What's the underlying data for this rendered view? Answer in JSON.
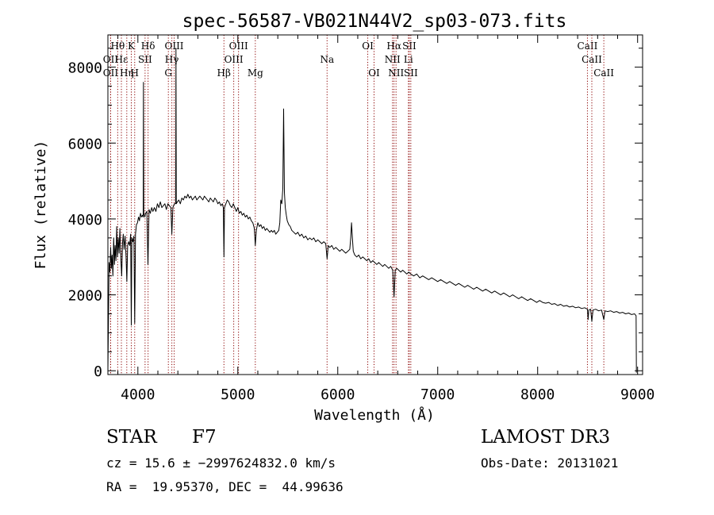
{
  "chart_data": {
    "type": "line",
    "title": "spec-56587-VB021N44V2_sp03-073.fits",
    "xlabel": "Wavelength (Å)",
    "ylabel": "Flux (relative)",
    "xlim": [
      3700,
      9050
    ],
    "ylim": [
      -100,
      8850
    ],
    "x_ticks": [
      4000,
      5000,
      6000,
      7000,
      8000,
      9000
    ],
    "y_ticks": [
      0,
      2000,
      4000,
      6000,
      8000
    ],
    "grid": false,
    "line_color": "#000000",
    "marker_color": "#8b0000",
    "spectrum_points": [
      [
        3700,
        0
      ],
      [
        3705,
        1150
      ],
      [
        3712,
        2850
      ],
      [
        3720,
        2600
      ],
      [
        3728,
        3250
      ],
      [
        3735,
        2700
      ],
      [
        3742,
        3050
      ],
      [
        3750,
        2500
      ],
      [
        3758,
        3500
      ],
      [
        3766,
        2800
      ],
      [
        3772,
        3300
      ],
      [
        3780,
        2900
      ],
      [
        3788,
        3800
      ],
      [
        3796,
        3000
      ],
      [
        3804,
        3500
      ],
      [
        3812,
        3100
      ],
      [
        3820,
        3750
      ],
      [
        3830,
        2900
      ],
      [
        3838,
        2500
      ],
      [
        3846,
        3350
      ],
      [
        3854,
        3600
      ],
      [
        3862,
        3200
      ],
      [
        3872,
        3550
      ],
      [
        3882,
        3000
      ],
      [
        3890,
        2350
      ],
      [
        3898,
        3300
      ],
      [
        3908,
        3400
      ],
      [
        3918,
        3300
      ],
      [
        3928,
        3600
      ],
      [
        3934,
        1200
      ],
      [
        3940,
        3500
      ],
      [
        3950,
        3400
      ],
      [
        3960,
        3550
      ],
      [
        3968,
        1250
      ],
      [
        3976,
        3600
      ],
      [
        3986,
        3850
      ],
      [
        3996,
        3900
      ],
      [
        4006,
        4050
      ],
      [
        4016,
        3950
      ],
      [
        4026,
        4150
      ],
      [
        4036,
        4050
      ],
      [
        4046,
        4100
      ],
      [
        4053,
        4050
      ],
      [
        4056,
        7600
      ],
      [
        4059,
        4150
      ],
      [
        4068,
        4050
      ],
      [
        4078,
        4150
      ],
      [
        4090,
        4200
      ],
      [
        4101,
        2800
      ],
      [
        4112,
        4250
      ],
      [
        4125,
        4150
      ],
      [
        4138,
        4300
      ],
      [
        4150,
        4200
      ],
      [
        4165,
        4300
      ],
      [
        4180,
        4200
      ],
      [
        4195,
        4400
      ],
      [
        4210,
        4300
      ],
      [
        4225,
        4450
      ],
      [
        4240,
        4300
      ],
      [
        4255,
        4350
      ],
      [
        4270,
        4400
      ],
      [
        4285,
        4250
      ],
      [
        4300,
        4400
      ],
      [
        4315,
        4350
      ],
      [
        4330,
        4300
      ],
      [
        4340,
        3600
      ],
      [
        4350,
        4300
      ],
      [
        4365,
        4400
      ],
      [
        4378,
        4400
      ],
      [
        4381,
        8500
      ],
      [
        4384,
        4400
      ],
      [
        4395,
        4450
      ],
      [
        4410,
        4500
      ],
      [
        4425,
        4400
      ],
      [
        4440,
        4550
      ],
      [
        4455,
        4500
      ],
      [
        4470,
        4600
      ],
      [
        4485,
        4550
      ],
      [
        4500,
        4650
      ],
      [
        4515,
        4550
      ],
      [
        4530,
        4600
      ],
      [
        4545,
        4500
      ],
      [
        4560,
        4550
      ],
      [
        4575,
        4600
      ],
      [
        4590,
        4500
      ],
      [
        4605,
        4550
      ],
      [
        4620,
        4600
      ],
      [
        4635,
        4550
      ],
      [
        4650,
        4500
      ],
      [
        4665,
        4600
      ],
      [
        4680,
        4550
      ],
      [
        4695,
        4500
      ],
      [
        4710,
        4450
      ],
      [
        4725,
        4550
      ],
      [
        4740,
        4500
      ],
      [
        4755,
        4450
      ],
      [
        4770,
        4550
      ],
      [
        4785,
        4500
      ],
      [
        4800,
        4400
      ],
      [
        4815,
        4450
      ],
      [
        4830,
        4350
      ],
      [
        4845,
        4400
      ],
      [
        4855,
        4300
      ],
      [
        4861,
        3000
      ],
      [
        4867,
        4300
      ],
      [
        4880,
        4400
      ],
      [
        4895,
        4500
      ],
      [
        4910,
        4450
      ],
      [
        4925,
        4350
      ],
      [
        4940,
        4300
      ],
      [
        4955,
        4400
      ],
      [
        4970,
        4300
      ],
      [
        4985,
        4200
      ],
      [
        5000,
        4300
      ],
      [
        5015,
        4150
      ],
      [
        5030,
        4200
      ],
      [
        5045,
        4100
      ],
      [
        5060,
        4150
      ],
      [
        5075,
        4050
      ],
      [
        5090,
        4100
      ],
      [
        5105,
        4000
      ],
      [
        5120,
        4050
      ],
      [
        5135,
        3950
      ],
      [
        5150,
        3900
      ],
      [
        5165,
        3750
      ],
      [
        5175,
        3300
      ],
      [
        5185,
        3700
      ],
      [
        5200,
        3900
      ],
      [
        5215,
        3800
      ],
      [
        5230,
        3850
      ],
      [
        5245,
        3750
      ],
      [
        5260,
        3800
      ],
      [
        5275,
        3700
      ],
      [
        5290,
        3750
      ],
      [
        5305,
        3700
      ],
      [
        5320,
        3650
      ],
      [
        5335,
        3700
      ],
      [
        5350,
        3650
      ],
      [
        5365,
        3700
      ],
      [
        5380,
        3600
      ],
      [
        5395,
        3650
      ],
      [
        5410,
        3700
      ],
      [
        5420,
        3900
      ],
      [
        5430,
        4500
      ],
      [
        5440,
        4400
      ],
      [
        5450,
        4800
      ],
      [
        5458,
        6900
      ],
      [
        5466,
        4700
      ],
      [
        5475,
        4300
      ],
      [
        5485,
        4100
      ],
      [
        5495,
        3950
      ],
      [
        5510,
        3850
      ],
      [
        5525,
        3800
      ],
      [
        5540,
        3700
      ],
      [
        5560,
        3650
      ],
      [
        5580,
        3600
      ],
      [
        5600,
        3650
      ],
      [
        5620,
        3550
      ],
      [
        5640,
        3600
      ],
      [
        5660,
        3500
      ],
      [
        5680,
        3550
      ],
      [
        5700,
        3450
      ],
      [
        5720,
        3500
      ],
      [
        5740,
        3450
      ],
      [
        5760,
        3500
      ],
      [
        5780,
        3400
      ],
      [
        5800,
        3450
      ],
      [
        5820,
        3400
      ],
      [
        5840,
        3350
      ],
      [
        5860,
        3400
      ],
      [
        5880,
        3350
      ],
      [
        5893,
        2950
      ],
      [
        5905,
        3300
      ],
      [
        5920,
        3250
      ],
      [
        5940,
        3300
      ],
      [
        5960,
        3200
      ],
      [
        5980,
        3250
      ],
      [
        6000,
        3200
      ],
      [
        6020,
        3150
      ],
      [
        6040,
        3200
      ],
      [
        6060,
        3150
      ],
      [
        6080,
        3100
      ],
      [
        6100,
        3150
      ],
      [
        6120,
        3200
      ],
      [
        6130,
        3500
      ],
      [
        6138,
        3900
      ],
      [
        6146,
        3500
      ],
      [
        6155,
        3150
      ],
      [
        6170,
        3050
      ],
      [
        6190,
        3000
      ],
      [
        6210,
        3050
      ],
      [
        6230,
        2950
      ],
      [
        6250,
        3000
      ],
      [
        6270,
        2950
      ],
      [
        6290,
        2900
      ],
      [
        6310,
        2950
      ],
      [
        6330,
        2850
      ],
      [
        6350,
        2900
      ],
      [
        6370,
        2850
      ],
      [
        6390,
        2800
      ],
      [
        6410,
        2850
      ],
      [
        6430,
        2800
      ],
      [
        6450,
        2750
      ],
      [
        6470,
        2800
      ],
      [
        6490,
        2750
      ],
      [
        6510,
        2700
      ],
      [
        6530,
        2750
      ],
      [
        6550,
        2650
      ],
      [
        6563,
        1950
      ],
      [
        6575,
        2650
      ],
      [
        6590,
        2700
      ],
      [
        6610,
        2650
      ],
      [
        6630,
        2600
      ],
      [
        6650,
        2650
      ],
      [
        6670,
        2600
      ],
      [
        6690,
        2550
      ],
      [
        6710,
        2600
      ],
      [
        6730,
        2550
      ],
      [
        6760,
        2500
      ],
      [
        6790,
        2550
      ],
      [
        6820,
        2450
      ],
      [
        6850,
        2500
      ],
      [
        6880,
        2450
      ],
      [
        6910,
        2400
      ],
      [
        6940,
        2450
      ],
      [
        6970,
        2400
      ],
      [
        7000,
        2350
      ],
      [
        7030,
        2400
      ],
      [
        7060,
        2350
      ],
      [
        7090,
        2300
      ],
      [
        7120,
        2350
      ],
      [
        7150,
        2300
      ],
      [
        7180,
        2250
      ],
      [
        7210,
        2300
      ],
      [
        7240,
        2250
      ],
      [
        7270,
        2200
      ],
      [
        7300,
        2250
      ],
      [
        7330,
        2200
      ],
      [
        7360,
        2150
      ],
      [
        7390,
        2200
      ],
      [
        7420,
        2150
      ],
      [
        7450,
        2100
      ],
      [
        7480,
        2150
      ],
      [
        7510,
        2100
      ],
      [
        7540,
        2050
      ],
      [
        7570,
        2100
      ],
      [
        7600,
        2050
      ],
      [
        7630,
        2000
      ],
      [
        7660,
        2050
      ],
      [
        7690,
        2000
      ],
      [
        7720,
        1950
      ],
      [
        7750,
        2000
      ],
      [
        7780,
        1950
      ],
      [
        7810,
        1900
      ],
      [
        7840,
        1950
      ],
      [
        7870,
        1900
      ],
      [
        7900,
        1850
      ],
      [
        7930,
        1900
      ],
      [
        7960,
        1850
      ],
      [
        7990,
        1800
      ],
      [
        8020,
        1850
      ],
      [
        8050,
        1800
      ],
      [
        8080,
        1780
      ],
      [
        8110,
        1800
      ],
      [
        8140,
        1750
      ],
      [
        8170,
        1770
      ],
      [
        8200,
        1720
      ],
      [
        8230,
        1750
      ],
      [
        8260,
        1700
      ],
      [
        8290,
        1720
      ],
      [
        8320,
        1680
      ],
      [
        8350,
        1700
      ],
      [
        8380,
        1660
      ],
      [
        8410,
        1680
      ],
      [
        8440,
        1640
      ],
      [
        8470,
        1660
      ],
      [
        8498,
        1620
      ],
      [
        8505,
        1350
      ],
      [
        8512,
        1600
      ],
      [
        8530,
        1620
      ],
      [
        8542,
        1300
      ],
      [
        8554,
        1600
      ],
      [
        8580,
        1620
      ],
      [
        8610,
        1580
      ],
      [
        8640,
        1600
      ],
      [
        8662,
        1350
      ],
      [
        8674,
        1580
      ],
      [
        8700,
        1560
      ],
      [
        8730,
        1580
      ],
      [
        8760,
        1540
      ],
      [
        8790,
        1560
      ],
      [
        8820,
        1520
      ],
      [
        8850,
        1540
      ],
      [
        8880,
        1500
      ],
      [
        8910,
        1520
      ],
      [
        8940,
        1480
      ],
      [
        8970,
        1500
      ],
      [
        8985,
        1450
      ],
      [
        8988,
        -50
      ]
    ],
    "line_markers": [
      {
        "label": "Hθ",
        "x": 3798,
        "row": 1
      },
      {
        "label": "OII",
        "x": 3727,
        "row": 2
      },
      {
        "label": "OII",
        "x": 3727,
        "row": 3
      },
      {
        "label": "Hε",
        "x": 3835,
        "row": 2
      },
      {
        "label": "Hη",
        "x": 3889,
        "row": 3
      },
      {
        "label": "K",
        "x": 3934,
        "row": 1
      },
      {
        "label": "H",
        "x": 3968,
        "row": 3
      },
      {
        "label": "SII",
        "x": 4072,
        "row": 2
      },
      {
        "label": "Hδ",
        "x": 4102,
        "row": 1
      },
      {
        "label": "OIII",
        "x": 4363,
        "row": 1
      },
      {
        "label": "Hγ",
        "x": 4340,
        "row": 2
      },
      {
        "label": "G",
        "x": 4305,
        "row": 3
      },
      {
        "label": "Hβ",
        "x": 4861,
        "row": 3
      },
      {
        "label": "OIII",
        "x": 5007,
        "row": 1
      },
      {
        "label": "OIII",
        "x": 4959,
        "row": 2
      },
      {
        "label": "Mg",
        "x": 5175,
        "row": 3
      },
      {
        "label": "Na",
        "x": 5893,
        "row": 2
      },
      {
        "label": "OI",
        "x": 6300,
        "row": 1
      },
      {
        "label": "OI",
        "x": 6363,
        "row": 3
      },
      {
        "label": "Hα",
        "x": 6563,
        "row": 1
      },
      {
        "label": "NII",
        "x": 6548,
        "row": 2
      },
      {
        "label": "NII",
        "x": 6583,
        "row": 3
      },
      {
        "label": "SII",
        "x": 6716,
        "row": 1
      },
      {
        "label": "Li",
        "x": 6707,
        "row": 2
      },
      {
        "label": "SII",
        "x": 6731,
        "row": 3
      },
      {
        "label": "CaII",
        "x": 8498,
        "row": 1
      },
      {
        "label": "CaII",
        "x": 8542,
        "row": 2
      },
      {
        "label": "CaII",
        "x": 8662,
        "row": 3
      }
    ]
  },
  "info": {
    "class_type": "STAR",
    "subclass": "F7",
    "survey": "LAMOST DR3",
    "redshift_text": "cz = 15.6 ± −2997624832.0 km/s",
    "obs_date": "Obs-Date: 20131021",
    "coords": "RA =  19.95370, DEC =  44.99636"
  }
}
